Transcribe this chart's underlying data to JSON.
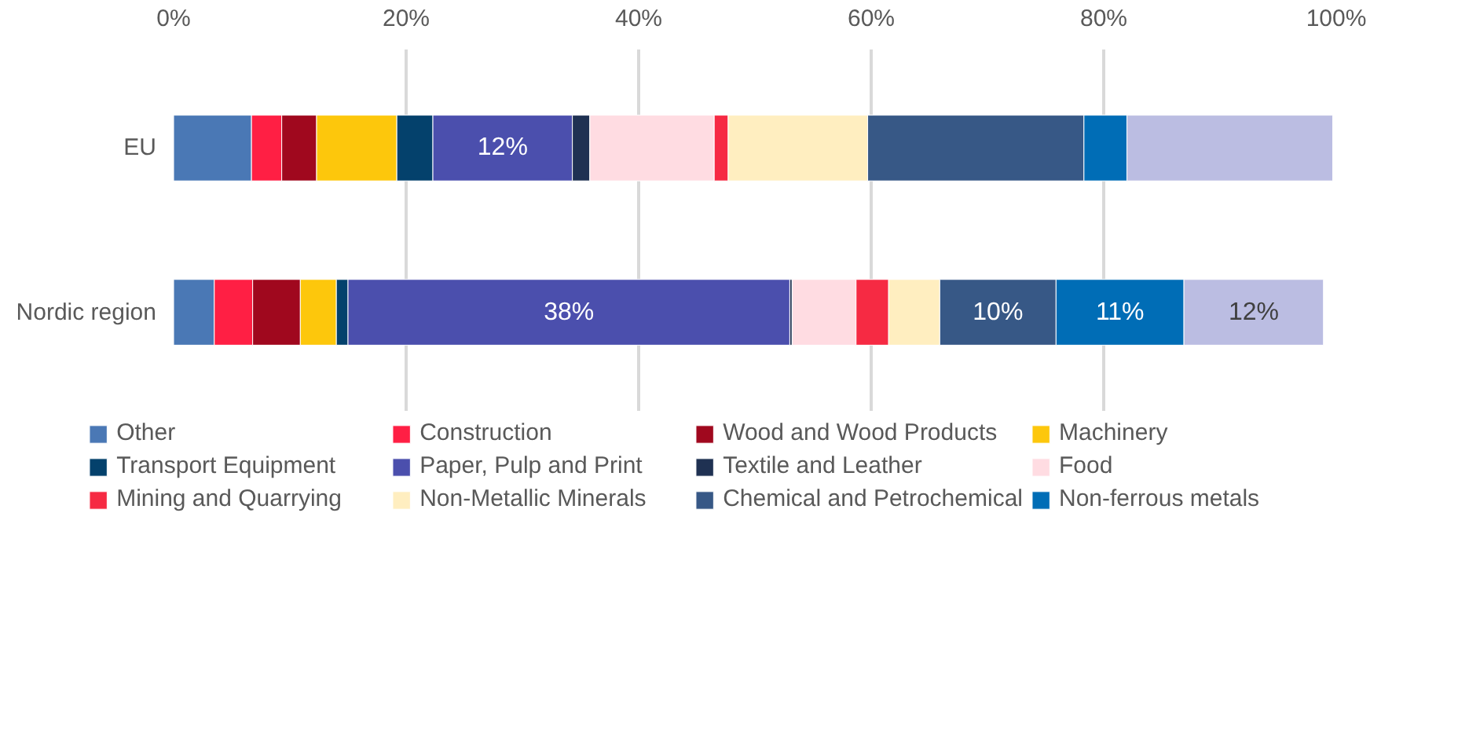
{
  "chart_data": {
    "type": "bar",
    "orientation": "horizontal",
    "stacked": true,
    "categories": [
      "EU",
      "Nordic region"
    ],
    "xlim": [
      0,
      100
    ],
    "xticks": [
      {
        "value": 0,
        "label": "0%"
      },
      {
        "value": 20,
        "label": "20%"
      },
      {
        "value": 40,
        "label": "40%"
      },
      {
        "value": 60,
        "label": "60%"
      },
      {
        "value": 80,
        "label": "80%"
      },
      {
        "value": 100,
        "label": "100%"
      }
    ],
    "grid": "x",
    "legend": "bottom",
    "series": [
      {
        "name": "Other",
        "color": "#4a78b5",
        "values": [
          6.7,
          3.5
        ],
        "value_labels": [
          null,
          null
        ]
      },
      {
        "name": "Construction",
        "color": "#ff1f44",
        "values": [
          2.6,
          3.3
        ],
        "value_labels": [
          null,
          null
        ]
      },
      {
        "name": "Wood and Wood Products",
        "color": "#a0081e",
        "values": [
          3.0,
          4.1
        ],
        "value_labels": [
          null,
          null
        ]
      },
      {
        "name": "Machinery",
        "color": "#fdc70c",
        "values": [
          6.9,
          3.1
        ],
        "value_labels": [
          null,
          null
        ]
      },
      {
        "name": "Transport Equipment",
        "color": "#04416c",
        "values": [
          3.1,
          1.0
        ],
        "value_labels": [
          null,
          null
        ]
      },
      {
        "name": "Paper, Pulp and Print",
        "color": "#4b4fad",
        "values": [
          12,
          38
        ],
        "value_labels": [
          "12%",
          "38%"
        ]
      },
      {
        "name": "Textile and Leather",
        "color": "#1f3152",
        "values": [
          1.5,
          0.2
        ],
        "value_labels": [
          null,
          null
        ]
      },
      {
        "name": "Food",
        "color": "#ffdce2",
        "values": [
          10.7,
          5.5
        ],
        "value_labels": [
          null,
          null
        ]
      },
      {
        "name": "Mining and Quarrying",
        "color": "#f62a43",
        "values": [
          1.2,
          2.8
        ],
        "value_labels": [
          null,
          null
        ]
      },
      {
        "name": "Non-Metallic Minerals",
        "color": "#ffeec0",
        "values": [
          12.0,
          4.4
        ],
        "value_labels": [
          null,
          null
        ]
      },
      {
        "name": "Chemical and Petrochemical",
        "color": "#375886",
        "values": [
          18.6,
          10
        ],
        "value_labels": [
          null,
          "10%"
        ]
      },
      {
        "name": "Non-ferrous metals",
        "color": "#006db6",
        "values": [
          3.7,
          11
        ],
        "value_labels": [
          null,
          "11%"
        ]
      },
      {
        "color": "#bbbde2",
        "values": [
          17.7,
          12
        ],
        "value_labels": [
          null,
          "12%"
        ]
      }
    ]
  }
}
